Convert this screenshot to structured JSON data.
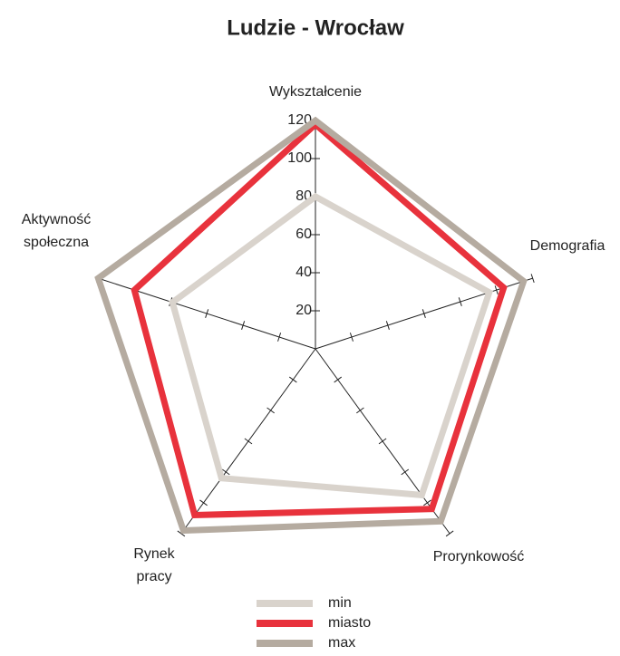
{
  "chart_data": {
    "type": "radar",
    "title": "Ludzie - Wrocław",
    "categories": [
      "Wykształcenie",
      "Demografia",
      "Prorynkowość",
      "Rynek pracy",
      "Aktywność społeczna"
    ],
    "series": [
      {
        "name": "min",
        "color": "#d9d3cc",
        "values": [
          80,
          96,
          95,
          84,
          79
        ]
      },
      {
        "name": "miasto",
        "color": "#e8323c",
        "values": [
          118,
          104,
          104,
          108,
          100
        ]
      },
      {
        "name": "max",
        "color": "#b5aba0",
        "values": [
          120,
          115,
          112,
          118,
          120
        ]
      }
    ],
    "ylim": [
      0,
      120
    ],
    "yticks": [
      20,
      40,
      60,
      80,
      100,
      120
    ],
    "legend": "bottom"
  }
}
